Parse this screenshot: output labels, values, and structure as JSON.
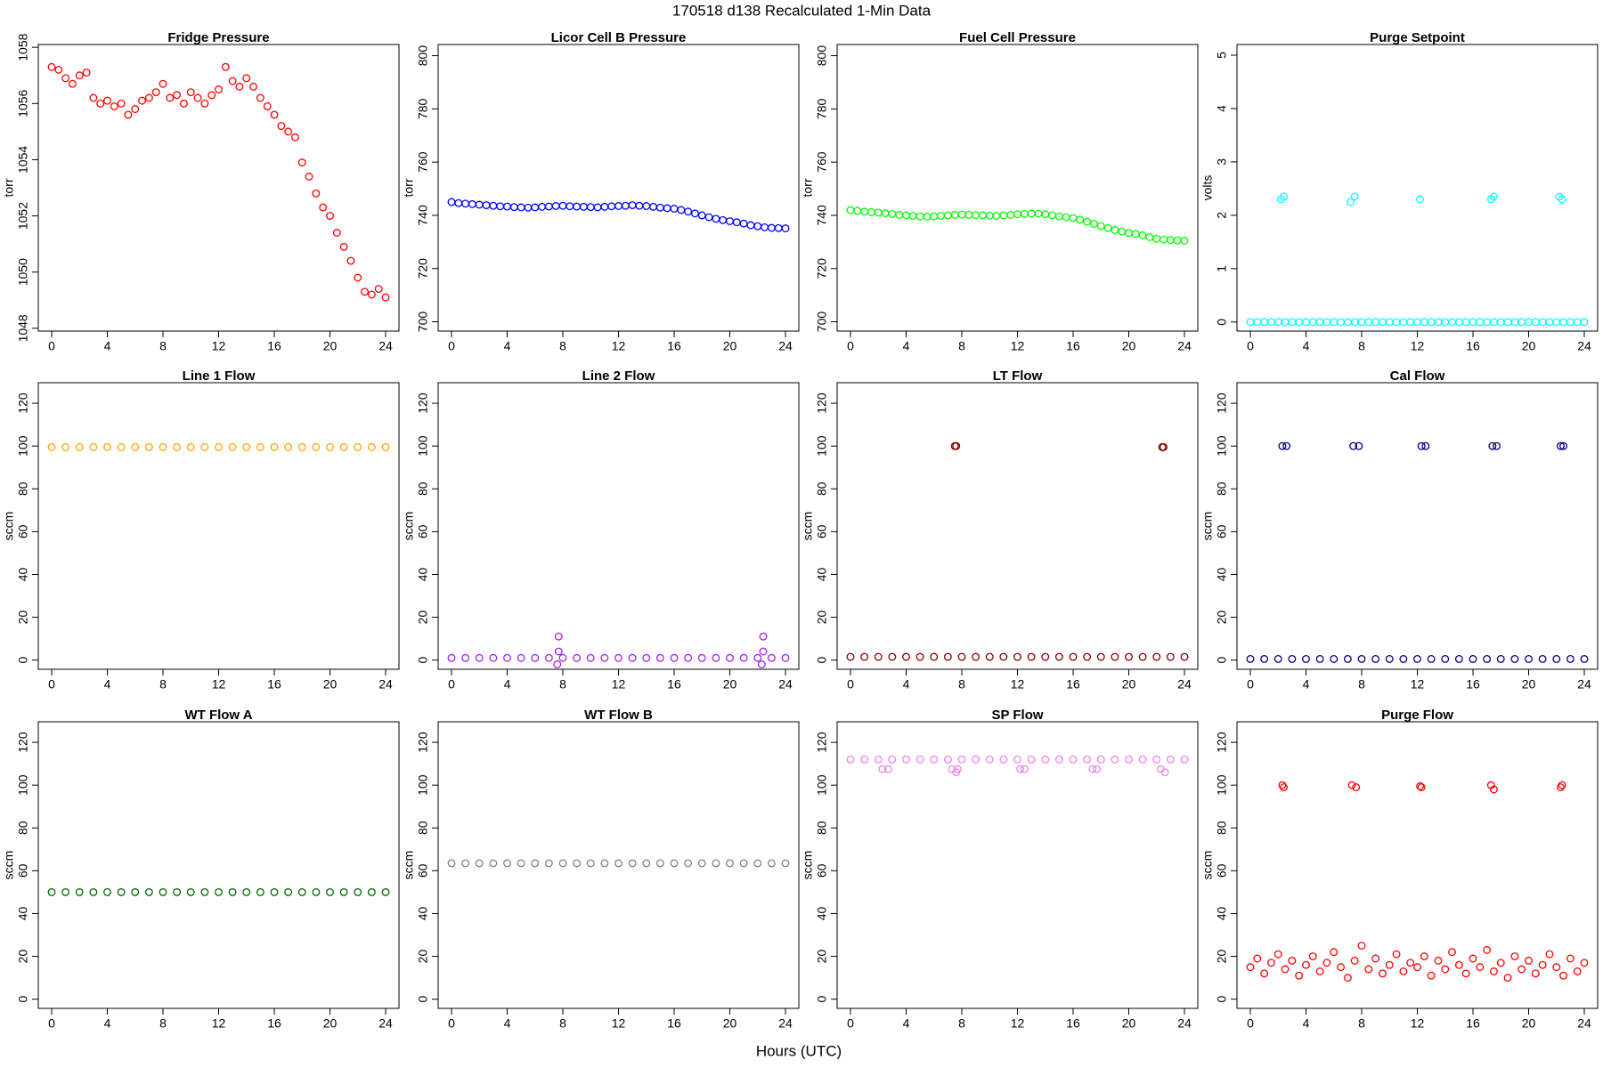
{
  "title": "170518   d138   Recalculated 1-Min Data",
  "x_label": "Hours (UTC)",
  "chart_data": [
    {
      "type": "scatter",
      "title": "Fridge Pressure",
      "y_label": "torr",
      "color": "#ff0000",
      "x": [
        0,
        0.5,
        1,
        1.5,
        2,
        2.5,
        3,
        3.5,
        4,
        4.5,
        5,
        5.5,
        6,
        6.5,
        7,
        7.5,
        8,
        8.5,
        9,
        9.5,
        10,
        10.5,
        11,
        11.5,
        12,
        12.5,
        13,
        13.5,
        14,
        14.5,
        15,
        15.5,
        16,
        16.5,
        17,
        17.5,
        18,
        18.5,
        19,
        19.5,
        20,
        20.5,
        21,
        21.5,
        22,
        22.5,
        23,
        23.5,
        24
      ],
      "values": [
        1057.3,
        1057.2,
        1056.9,
        1056.7,
        1057.0,
        1057.1,
        1056.2,
        1056.0,
        1056.1,
        1055.9,
        1056.0,
        1055.6,
        1055.8,
        1056.1,
        1056.2,
        1056.4,
        1056.7,
        1056.2,
        1056.3,
        1056.0,
        1056.4,
        1056.2,
        1056.0,
        1056.3,
        1056.5,
        1057.3,
        1056.8,
        1056.6,
        1056.9,
        1056.6,
        1056.2,
        1055.9,
        1055.6,
        1055.2,
        1055.0,
        1054.8,
        1053.9,
        1053.4,
        1052.8,
        1052.3,
        1052.0,
        1051.4,
        1050.9,
        1050.4,
        1049.8,
        1049.3,
        1049.2,
        1049.4,
        1049.1
      ],
      "xlim": [
        -0.96,
        24.96
      ],
      "xticks": [
        0,
        4,
        8,
        12,
        16,
        20,
        24
      ],
      "ylim": [
        1047.9,
        1058.1
      ],
      "yticks": [
        1048,
        1050,
        1052,
        1054,
        1056,
        1058
      ]
    },
    {
      "type": "scatter",
      "title": "Licor Cell B Pressure",
      "y_label": "torr",
      "color": "#0000ff",
      "x": [
        0,
        0.5,
        1,
        1.5,
        2,
        2.5,
        3,
        3.5,
        4,
        4.5,
        5,
        5.5,
        6,
        6.5,
        7,
        7.5,
        8,
        8.5,
        9,
        9.5,
        10,
        10.5,
        11,
        11.5,
        12,
        12.5,
        13,
        13.5,
        14,
        14.5,
        15,
        15.5,
        16,
        16.5,
        17,
        17.5,
        18,
        18.5,
        19,
        19.5,
        20,
        20.5,
        21,
        21.5,
        22,
        22.5,
        23,
        23.5,
        24
      ],
      "values": [
        745,
        744.6,
        744.4,
        744.2,
        744.0,
        743.8,
        743.6,
        743.4,
        743.3,
        743.1,
        743.0,
        742.9,
        743.0,
        743.2,
        743.3,
        743.5,
        743.6,
        743.4,
        743.3,
        743.2,
        743.1,
        743.0,
        743.2,
        743.4,
        743.5,
        743.6,
        743.8,
        743.6,
        743.5,
        743.2,
        742.9,
        742.7,
        742.5,
        742.0,
        741.4,
        740.7,
        740.0,
        739.3,
        738.7,
        738.2,
        737.8,
        737.4,
        736.9,
        736.3,
        735.9,
        735.5,
        735.3,
        735.2,
        735.1
      ],
      "xlim": [
        -0.96,
        24.96
      ],
      "xticks": [
        0,
        4,
        8,
        12,
        16,
        20,
        24
      ],
      "ylim": [
        696.5,
        804.2
      ],
      "yticks": [
        700,
        720,
        740,
        760,
        780,
        800
      ]
    },
    {
      "type": "scatter",
      "title": "Fuel Cell Pressure",
      "y_label": "torr",
      "color": "#00ff00",
      "x": [
        0,
        0.5,
        1,
        1.5,
        2,
        2.5,
        3,
        3.5,
        4,
        4.5,
        5,
        5.5,
        6,
        6.5,
        7,
        7.5,
        8,
        8.5,
        9,
        9.5,
        10,
        10.5,
        11,
        11.5,
        12,
        12.5,
        13,
        13.5,
        14,
        14.5,
        15,
        15.5,
        16,
        16.5,
        17,
        17.5,
        18,
        18.5,
        19,
        19.5,
        20,
        20.5,
        21,
        21.5,
        22,
        22.5,
        23,
        23.5,
        24
      ],
      "values": [
        742,
        741.7,
        741.4,
        741.2,
        741.0,
        740.8,
        740.5,
        740.2,
        740.0,
        739.8,
        739.6,
        739.5,
        739.6,
        739.8,
        740.0,
        740.2,
        740.3,
        740.2,
        740.1,
        740.0,
        739.9,
        739.8,
        740.0,
        740.2,
        740.4,
        740.5,
        740.7,
        740.6,
        740.4,
        740.0,
        739.6,
        739.3,
        739.0,
        738.4,
        737.6,
        736.8,
        736.0,
        735.2,
        734.5,
        733.9,
        733.4,
        733.0,
        732.5,
        731.8,
        731.2,
        730.9,
        730.7,
        730.6,
        730.5
      ],
      "xlim": [
        -0.96,
        24.96
      ],
      "xticks": [
        0,
        4,
        8,
        12,
        16,
        20,
        24
      ],
      "ylim": [
        696.5,
        804.2
      ],
      "yticks": [
        700,
        720,
        740,
        760,
        780,
        800
      ]
    },
    {
      "type": "scatter",
      "title": "Purge Setpoint",
      "y_label": "volts",
      "color": "#00ffff",
      "x": [
        0,
        0.5,
        1,
        1.5,
        2,
        2.5,
        3,
        3.5,
        4,
        4.5,
        5,
        5.5,
        6,
        6.5,
        7,
        7.5,
        8,
        8.5,
        9,
        9.5,
        10,
        10.5,
        11,
        11.5,
        12,
        12.5,
        13,
        13.5,
        14,
        14.5,
        15,
        15.5,
        16,
        16.5,
        17,
        17.5,
        18,
        18.5,
        19,
        19.5,
        20,
        20.5,
        21,
        21.5,
        22,
        22.5,
        23,
        23.5,
        24,
        2.2,
        2.4,
        7.2,
        7.5,
        12.2,
        17.3,
        17.5,
        22.2,
        22.4
      ],
      "values": [
        0,
        0,
        0,
        0,
        0,
        0,
        0,
        0,
        0,
        0,
        0,
        0,
        0,
        0,
        0,
        0,
        0,
        0,
        0,
        0,
        0,
        0,
        0,
        0,
        0,
        0,
        0,
        0,
        0,
        0,
        0,
        0,
        0,
        0,
        0,
        0,
        0,
        0,
        0,
        0,
        0,
        0,
        0,
        0,
        0,
        0,
        0,
        0,
        0,
        2.3,
        2.35,
        2.25,
        2.35,
        2.3,
        2.3,
        2.35,
        2.35,
        2.3
      ],
      "xlim": [
        -0.96,
        24.96
      ],
      "xticks": [
        0,
        4,
        8,
        12,
        16,
        20,
        24
      ],
      "ylim": [
        -0.17,
        5.2
      ],
      "yticks": [
        0,
        1,
        2,
        3,
        4,
        5
      ]
    },
    {
      "type": "scatter",
      "title": "Line 1 Flow",
      "y_label": "sccm",
      "color": "#ffa500",
      "x": [
        0,
        1,
        2,
        3,
        4,
        5,
        6,
        7,
        8,
        9,
        10,
        11,
        12,
        13,
        14,
        15,
        16,
        17,
        18,
        19,
        20,
        21,
        22,
        23,
        24
      ],
      "values": [
        99.5,
        99.5,
        99.5,
        99.5,
        99.5,
        99.5,
        99.5,
        99.5,
        99.5,
        99.5,
        99.5,
        99.5,
        99.5,
        99.5,
        99.5,
        99.5,
        99.5,
        99.5,
        99.5,
        99.5,
        99.5,
        99.5,
        99.5,
        99.5,
        99.5
      ],
      "xlim": [
        -0.96,
        24.96
      ],
      "xticks": [
        0,
        4,
        8,
        12,
        16,
        20,
        24
      ],
      "ylim": [
        -4.3,
        129.6
      ],
      "yticks": [
        0,
        20,
        40,
        60,
        80,
        100,
        120
      ]
    },
    {
      "type": "scatter",
      "title": "Line 2 Flow",
      "y_label": "sccm",
      "color": "#a020f0",
      "x": [
        0,
        1,
        2,
        3,
        4,
        5,
        6,
        7,
        8,
        9,
        10,
        11,
        12,
        13,
        14,
        15,
        16,
        17,
        18,
        19,
        20,
        21,
        22,
        23,
        24,
        7.7,
        7.7,
        7.6,
        22.4,
        22.4,
        22.3
      ],
      "values": [
        1,
        1,
        1,
        1,
        1,
        1,
        1,
        1,
        1,
        1,
        1,
        1,
        1,
        1,
        1,
        1,
        1,
        1,
        1,
        1,
        1,
        1,
        1,
        1,
        1,
        11,
        4,
        -2,
        11,
        4,
        -2
      ],
      "xlim": [
        -0.96,
        24.96
      ],
      "xticks": [
        0,
        4,
        8,
        12,
        16,
        20,
        24
      ],
      "ylim": [
        -4.3,
        129.6
      ],
      "yticks": [
        0,
        20,
        40,
        60,
        80,
        100,
        120
      ]
    },
    {
      "type": "scatter",
      "title": "LT Flow",
      "y_label": "sccm",
      "color": "#8b0000",
      "x": [
        0,
        1,
        2,
        3,
        4,
        5,
        6,
        7,
        8,
        9,
        10,
        11,
        12,
        13,
        14,
        15,
        16,
        17,
        18,
        19,
        20,
        21,
        22,
        23,
        24,
        7.5,
        7.6,
        22.4,
        22.5
      ],
      "values": [
        1.5,
        1.5,
        1.5,
        1.5,
        1.5,
        1.5,
        1.5,
        1.5,
        1.5,
        1.5,
        1.5,
        1.5,
        1.5,
        1.5,
        1.5,
        1.5,
        1.5,
        1.5,
        1.5,
        1.5,
        1.5,
        1.5,
        1.5,
        1.5,
        1.5,
        100,
        100,
        99.5,
        99.5
      ],
      "xlim": [
        -0.96,
        24.96
      ],
      "xticks": [
        0,
        4,
        8,
        12,
        16,
        20,
        24
      ],
      "ylim": [
        -4.3,
        129.6
      ],
      "yticks": [
        0,
        20,
        40,
        60,
        80,
        100,
        120
      ]
    },
    {
      "type": "scatter",
      "title": "Cal Flow",
      "y_label": "sccm",
      "color": "#000080",
      "x": [
        0,
        1,
        2,
        3,
        4,
        5,
        6,
        7,
        8,
        9,
        10,
        11,
        12,
        13,
        14,
        15,
        16,
        17,
        18,
        19,
        20,
        21,
        22,
        23,
        24,
        2.3,
        2.6,
        7.4,
        7.8,
        12.3,
        12.6,
        17.4,
        17.7,
        22.3,
        22.5
      ],
      "values": [
        0.5,
        0.5,
        0.5,
        0.5,
        0.5,
        0.5,
        0.5,
        0.5,
        0.5,
        0.5,
        0.5,
        0.5,
        0.5,
        0.5,
        0.5,
        0.5,
        0.5,
        0.5,
        0.5,
        0.5,
        0.5,
        0.5,
        0.5,
        0.5,
        0.5,
        100,
        100,
        100,
        100,
        100,
        100,
        100,
        100,
        100,
        100
      ],
      "xlim": [
        -0.96,
        24.96
      ],
      "xticks": [
        0,
        4,
        8,
        12,
        16,
        20,
        24
      ],
      "ylim": [
        -4.3,
        129.6
      ],
      "yticks": [
        0,
        20,
        40,
        60,
        80,
        100,
        120
      ]
    },
    {
      "type": "scatter",
      "title": "WT Flow A",
      "y_label": "sccm",
      "color": "#006400",
      "x": [
        0,
        1,
        2,
        3,
        4,
        5,
        6,
        7,
        8,
        9,
        10,
        11,
        12,
        13,
        14,
        15,
        16,
        17,
        18,
        19,
        20,
        21,
        22,
        23,
        24
      ],
      "values": [
        50,
        50,
        50,
        50,
        50,
        50,
        50,
        50,
        50,
        50,
        50,
        50,
        50,
        50,
        50,
        50,
        50,
        50,
        50,
        50,
        50,
        50,
        50,
        50,
        50
      ],
      "xlim": [
        -0.96,
        24.96
      ],
      "xticks": [
        0,
        4,
        8,
        12,
        16,
        20,
        24
      ],
      "ylim": [
        -4.3,
        129.6
      ],
      "yticks": [
        0,
        20,
        40,
        60,
        80,
        100,
        120
      ]
    },
    {
      "type": "scatter",
      "title": "WT Flow B",
      "y_label": "sccm",
      "color": "#808080",
      "x": [
        0,
        1,
        2,
        3,
        4,
        5,
        6,
        7,
        8,
        9,
        10,
        11,
        12,
        13,
        14,
        15,
        16,
        17,
        18,
        19,
        20,
        21,
        22,
        23,
        24
      ],
      "values": [
        63.5,
        63.5,
        63.5,
        63.5,
        63.5,
        63.5,
        63.5,
        63.5,
        63.5,
        63.5,
        63.5,
        63.5,
        63.5,
        63.5,
        63.5,
        63.5,
        63.5,
        63.5,
        63.5,
        63.5,
        63.5,
        63.5,
        63.5,
        63.5,
        63.5
      ],
      "xlim": [
        -0.96,
        24.96
      ],
      "xticks": [
        0,
        4,
        8,
        12,
        16,
        20,
        24
      ],
      "ylim": [
        -4.3,
        129.6
      ],
      "yticks": [
        0,
        20,
        40,
        60,
        80,
        100,
        120
      ]
    },
    {
      "type": "scatter",
      "title": "SP Flow",
      "y_label": "sccm",
      "color": "#ee82ee",
      "x": [
        0,
        1,
        2,
        3,
        4,
        5,
        6,
        7,
        8,
        9,
        10,
        11,
        12,
        13,
        14,
        15,
        16,
        17,
        18,
        19,
        20,
        21,
        22,
        23,
        24,
        2.3,
        2.7,
        7.3,
        7.7,
        7.6,
        12.2,
        12.5,
        17.4,
        17.7,
        22.3,
        22.6
      ],
      "values": [
        112,
        112,
        112,
        112,
        112,
        112,
        112,
        112,
        112,
        112,
        112,
        112,
        112,
        112,
        112,
        112,
        112,
        112,
        112,
        112,
        112,
        112,
        112,
        112,
        112,
        107.5,
        107.5,
        107.5,
        107.5,
        106,
        107.5,
        107.5,
        107.5,
        107.5,
        107.5,
        106
      ],
      "xlim": [
        -0.96,
        24.96
      ],
      "xticks": [
        0,
        4,
        8,
        12,
        16,
        20,
        24
      ],
      "ylim": [
        -4.3,
        129.6
      ],
      "yticks": [
        0,
        20,
        40,
        60,
        80,
        100,
        120
      ]
    },
    {
      "type": "scatter",
      "title": "Purge Flow",
      "y_label": "sccm",
      "color": "#ff0000",
      "x": [
        0,
        0.5,
        1,
        1.5,
        2,
        2.5,
        3,
        3.5,
        4,
        4.5,
        5,
        5.5,
        6,
        6.5,
        7,
        7.5,
        8,
        8.5,
        9,
        9.5,
        10,
        10.5,
        11,
        11.5,
        12,
        12.5,
        13,
        13.5,
        14,
        14.5,
        15,
        15.5,
        16,
        16.5,
        17,
        17.5,
        18,
        18.5,
        19,
        19.5,
        20,
        20.5,
        21,
        21.5,
        22,
        22.5,
        23,
        23.5,
        24,
        2.3,
        2.4,
        7.3,
        7.6,
        12.2,
        12.3,
        17.3,
        17.5,
        22.3,
        22.4
      ],
      "values": [
        15,
        19,
        12,
        17,
        21,
        14,
        18,
        11,
        16,
        20,
        13,
        17,
        22,
        15,
        10,
        18,
        25,
        14,
        19,
        12,
        16,
        21,
        13,
        17,
        15,
        20,
        11,
        18,
        14,
        22,
        16,
        12,
        19,
        15,
        23,
        13,
        17,
        10,
        20,
        14,
        18,
        12,
        16,
        21,
        15,
        11,
        19,
        13,
        17,
        100,
        99,
        100,
        99,
        99.5,
        99,
        100,
        98,
        99,
        100
      ],
      "xlim": [
        -0.96,
        24.96
      ],
      "xticks": [
        0,
        4,
        8,
        12,
        16,
        20,
        24
      ],
      "ylim": [
        -4.3,
        129.6
      ],
      "yticks": [
        0,
        20,
        40,
        60,
        80,
        100,
        120
      ]
    }
  ]
}
